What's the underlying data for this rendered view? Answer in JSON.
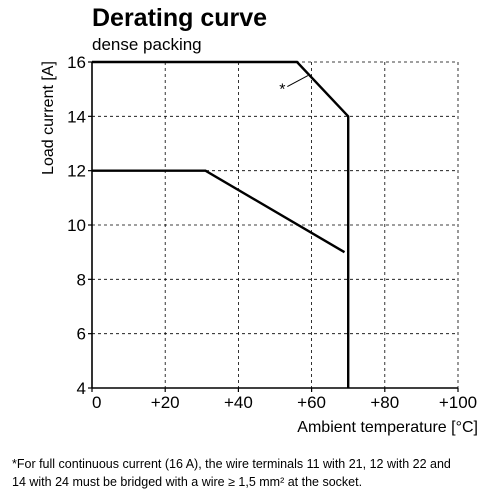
{
  "chart_data": {
    "type": "line",
    "title": "Derating curve",
    "subtitle": "dense packing",
    "xlabel": "Ambient temperature [°C]",
    "ylabel": "Load current [A]",
    "xlim": [
      0,
      100
    ],
    "ylim": [
      4,
      16
    ],
    "x_ticks": [
      0,
      20,
      40,
      60,
      80,
      100
    ],
    "x_tick_labels": [
      "0",
      "+20",
      "+40",
      "+60",
      "+80",
      "+100"
    ],
    "y_ticks": [
      4,
      6,
      8,
      10,
      12,
      14,
      16
    ],
    "y_tick_labels": [
      "4",
      "6",
      "8",
      "10",
      "12",
      "14",
      "16"
    ],
    "grid": true,
    "series": [
      {
        "points": [
          [
            0,
            16
          ],
          [
            56,
            16
          ],
          [
            70,
            14
          ],
          [
            70,
            4
          ]
        ]
      },
      {
        "points": [
          [
            0,
            12
          ],
          [
            31,
            12
          ],
          [
            69,
            9
          ]
        ]
      }
    ],
    "annotations": [
      {
        "text": "*",
        "x": 52,
        "y": 14.8,
        "arrow_to": [
          59,
          15.5
        ]
      }
    ]
  },
  "footnote": {
    "line1": "*For full continuous current (16 A), the wire terminals 11 with 21, 12 with 22 and",
    "line2": "14 with 24 must be bridged with a wire ≥ 1,5 mm² at the socket."
  }
}
